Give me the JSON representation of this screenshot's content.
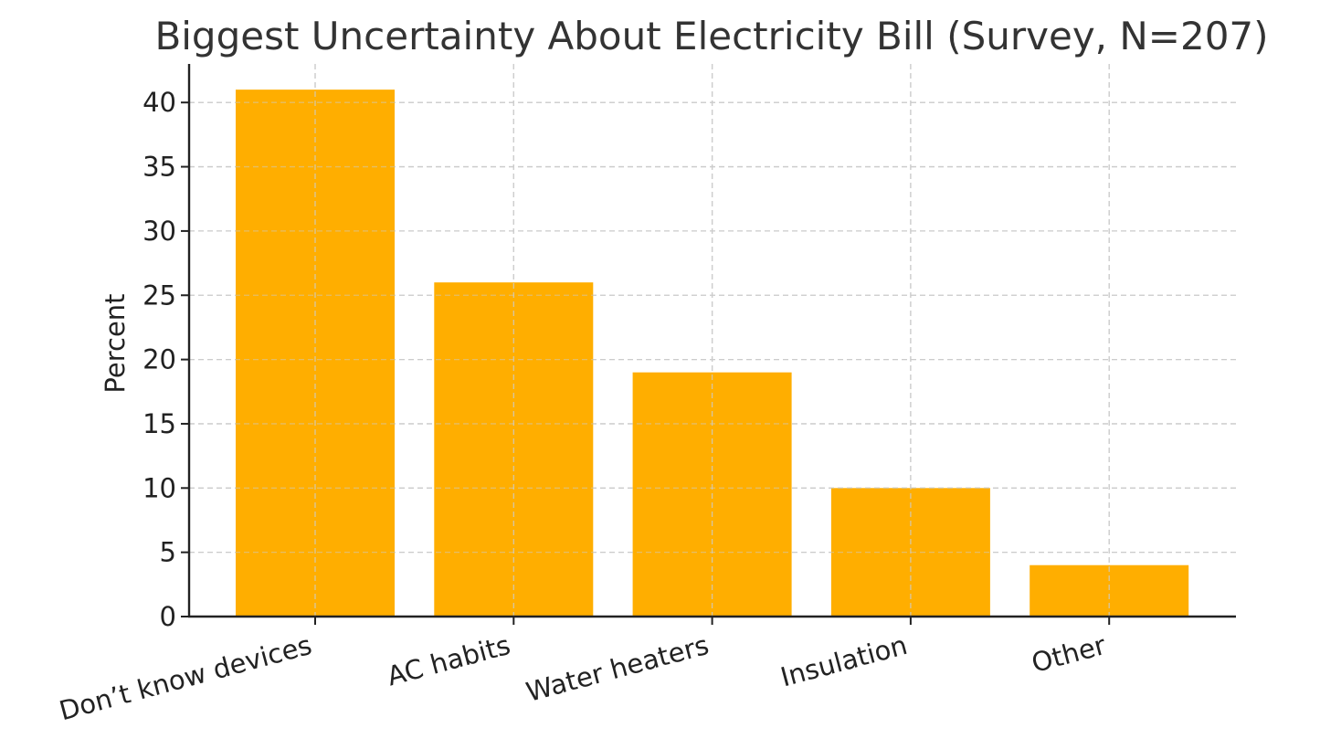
{
  "chart_data": {
    "type": "bar",
    "title": "Biggest Uncertainty About Electricity Bill (Survey, N=207)",
    "xlabel": "",
    "ylabel": "Percent",
    "categories": [
      "Don’t know devices",
      "AC habits",
      "Water heaters",
      "Insulation",
      "Other"
    ],
    "values": [
      41,
      26,
      19,
      10,
      4
    ],
    "ylim": [
      0,
      43
    ],
    "yticks": [
      0,
      5,
      10,
      15,
      20,
      25,
      30,
      35,
      40
    ],
    "grid": true,
    "bar_color": "#FFAE00",
    "legend": "none"
  }
}
